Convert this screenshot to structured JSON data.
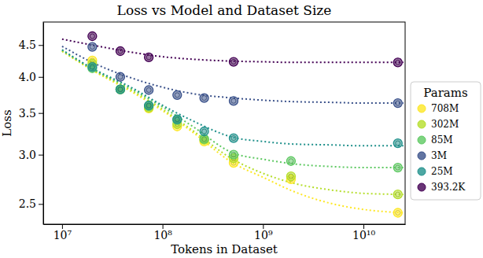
{
  "chart_data": {
    "type": "scatter",
    "title": "Loss vs Model and Dataset Size",
    "x_label": "Tokens in Dataset",
    "y_label": "Loss",
    "legend_title": "Params",
    "legend": "right",
    "log": true,
    "grid": false,
    "marker": "circle",
    "line_style": "dotted",
    "x": [
      20000000.0,
      38000000.0,
      73000000.0,
      140000000.0,
      260000000.0,
      510000000.0,
      1900000000.0,
      22000000000.0
    ],
    "fit_x": [
      10000000.0,
      20000000.0,
      50000000.0,
      100000000.0,
      200000000.0,
      500000000.0,
      1000000000.0,
      2000000000.0,
      5000000000.0,
      10000000000.0,
      25000000000.0
    ],
    "xlim": [
      6500000.0,
      26000000000.0
    ],
    "xticks": [
      {
        "value": 10000000.0,
        "label": "10⁷"
      },
      {
        "value": 100000000.0,
        "label": "10⁸"
      },
      {
        "value": 1000000000.0,
        "label": "10⁹"
      },
      {
        "value": 10000000000.0,
        "label": "10¹⁰"
      }
    ],
    "ylim": [
      2.32,
      4.9
    ],
    "yticks": [
      2.5,
      {
        "value": 3,
        "label": "3.0"
      },
      3.5,
      {
        "value": 4,
        "label": "4.0"
      },
      4.5
    ],
    "series": [
      {
        "name": "708M",
        "color": "#fde725",
        "values": [
          4.25,
          3.82,
          3.56,
          3.33,
          3.15,
          2.91,
          2.74,
          2.42
        ],
        "fit": [
          4.4,
          4.1,
          3.78,
          3.53,
          3.26,
          2.91,
          2.76,
          2.62,
          2.5,
          2.45,
          2.42
        ]
      },
      {
        "name": "302M",
        "color": "#b5de2b",
        "values": [
          4.2,
          3.82,
          3.57,
          3.36,
          3.17,
          2.96,
          2.77,
          2.59
        ],
        "fit": [
          4.4,
          4.11,
          3.8,
          3.55,
          3.28,
          2.95,
          2.8,
          2.7,
          2.63,
          2.6,
          2.59
        ]
      },
      {
        "name": "85M",
        "color": "#5ec962",
        "values": [
          4.13,
          3.82,
          3.59,
          3.41,
          3.18,
          3.0,
          2.93,
          2.86
        ],
        "fit": [
          4.42,
          4.12,
          3.82,
          3.58,
          3.33,
          3.02,
          2.95,
          2.9,
          2.87,
          2.86,
          2.86
        ]
      },
      {
        "name": "3M",
        "color": "#3b528b",
        "values": [
          4.47,
          4.0,
          3.81,
          3.74,
          3.7,
          3.66,
          null,
          3.63
        ],
        "fit": [
          4.48,
          4.22,
          3.98,
          3.85,
          3.76,
          3.7,
          3.67,
          3.65,
          3.64,
          3.63,
          3.63
        ]
      },
      {
        "name": "25M",
        "color": "#21918c",
        "values": [
          4.15,
          3.82,
          3.6,
          3.42,
          3.27,
          3.19,
          null,
          3.13
        ],
        "fit": [
          4.42,
          4.13,
          3.84,
          3.6,
          3.4,
          3.2,
          3.15,
          3.12,
          3.11,
          3.1,
          3.1
        ]
      },
      {
        "name": "393.2K",
        "color": "#440154",
        "values": [
          4.65,
          4.4,
          4.3,
          null,
          null,
          4.23,
          null,
          4.22
        ],
        "fit": [
          4.6,
          4.5,
          4.38,
          4.31,
          4.27,
          4.24,
          4.23,
          4.22,
          4.22,
          4.22,
          4.22
        ]
      }
    ]
  }
}
